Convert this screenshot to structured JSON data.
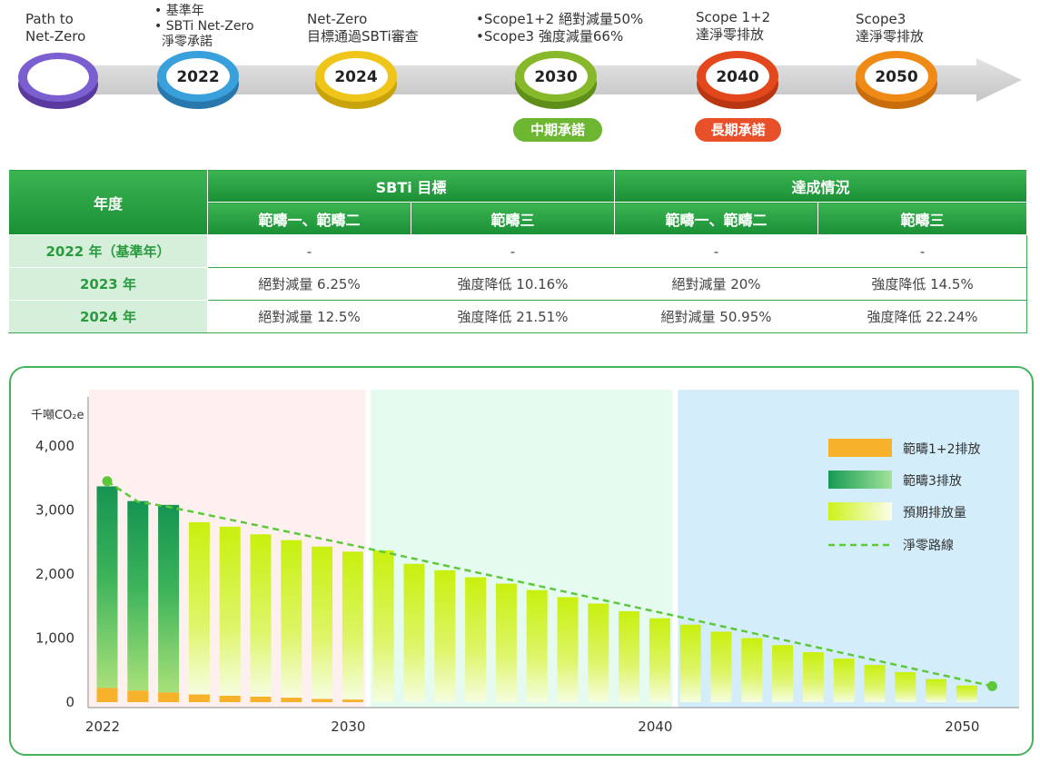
{
  "timeline": {
    "start_label": [
      "Path to",
      "Net-Zero"
    ],
    "milestones": [
      {
        "year": "2022",
        "lines": [
          "• 基準年",
          "• SBTi Net-Zero",
          "  淨零承諾"
        ],
        "color": "#3aa0db",
        "dark": "#2878ad"
      },
      {
        "year": "2024",
        "lines": [
          "Net-Zero",
          "目標通過SBTi審查"
        ],
        "color": "#efc51a",
        "dark": "#c9a30c"
      },
      {
        "year": "2030",
        "lines": [
          "•Scope1+2 絕對減量50%",
          "•Scope3 強度減量66%"
        ],
        "color": "#86b82a",
        "dark": "#5f8f1b",
        "badge": "中期承諾",
        "badge_color": "#6cb631"
      },
      {
        "year": "2040",
        "lines": [
          "Scope 1+2",
          "達淨零排放"
        ],
        "color": "#e3471c",
        "dark": "#b93613",
        "badge": "長期承諾",
        "badge_color": "#e8502a"
      },
      {
        "year": "2050",
        "lines": [
          "Scope3",
          "達淨零排放"
        ],
        "color": "#f08a16",
        "dark": "#c86c0c"
      }
    ]
  },
  "table": {
    "header_year": "年度",
    "group_targets": "SBTi 目標",
    "group_achieved": "達成情況",
    "sub_headers": [
      "範疇一、範疇二",
      "範疇三",
      "範疇一、範疇二",
      "範疇三"
    ],
    "rows": [
      {
        "year": "2022 年（基準年）",
        "cells": [
          "-",
          "-",
          "-",
          "-"
        ]
      },
      {
        "year": "2023 年",
        "cells": [
          "絕對減量 6.25%",
          "強度降低 10.16%",
          "絕對減量 20%",
          "強度降低 14.5%"
        ]
      },
      {
        "year": "2024 年",
        "cells": [
          "絕對減量 12.5%",
          "強度降低 21.51%",
          "絕對減量 50.95%",
          "強度降低 22.24%"
        ]
      }
    ]
  },
  "chart_data": {
    "type": "bar",
    "ylabel": "千噸CO₂e",
    "ylim": [
      0,
      4000
    ],
    "yticks": [
      0,
      1000,
      2000,
      3000,
      4000
    ],
    "ytick_labels": [
      "0",
      "1,000",
      "2,000",
      "3,000",
      "4,000"
    ],
    "xticks": [
      2022,
      2030,
      2040,
      2050
    ],
    "xtick_labels": [
      "2022",
      "2030",
      "2040",
      "2050"
    ],
    "x": [
      2022,
      2023,
      2024,
      2025,
      2026,
      2027,
      2028,
      2029,
      2030,
      2031,
      2032,
      2033,
      2034,
      2035,
      2036,
      2037,
      2038,
      2039,
      2040,
      2041,
      2042,
      2043,
      2044,
      2045,
      2046,
      2047,
      2048,
      2049,
      2050
    ],
    "series": [
      {
        "name": "範疇1+2排放",
        "color": "#f7b12a",
        "x": [
          2022,
          2023,
          2024,
          2025,
          2026,
          2027,
          2028,
          2029,
          2030
        ],
        "values": [
          220,
          180,
          150,
          120,
          100,
          85,
          70,
          50,
          40
        ]
      },
      {
        "name": "範疇3排放",
        "color": "#1e9a55",
        "x": [
          2022,
          2023,
          2024
        ],
        "values": [
          3150,
          2960,
          2930
        ]
      },
      {
        "name": "預期排放量",
        "color": "#ccf21a",
        "x": [
          2025,
          2026,
          2027,
          2028,
          2029,
          2030,
          2031,
          2032,
          2033,
          2034,
          2035,
          2036,
          2037,
          2038,
          2039,
          2040,
          2041,
          2042,
          2043,
          2044,
          2045,
          2046,
          2047,
          2048,
          2049,
          2050
        ],
        "values": [
          2810,
          2740,
          2620,
          2530,
          2430,
          2350,
          2370,
          2160,
          2060,
          1950,
          1850,
          1750,
          1640,
          1540,
          1420,
          1310,
          1210,
          1100,
          1000,
          890,
          780,
          680,
          580,
          470,
          360,
          260
        ]
      },
      {
        "name": "淨零路線",
        "color": "#5cc83a",
        "x": [
          2022,
          2023,
          2024,
          2025,
          2030,
          2040,
          2050
        ],
        "values": [
          3450,
          3130,
          3050,
          2950,
          2450,
          1400,
          250
        ]
      }
    ],
    "period_colors": [
      "#fdf0ee",
      "#e5fbef",
      "#d3edfa"
    ],
    "legend_position": "top-right"
  }
}
